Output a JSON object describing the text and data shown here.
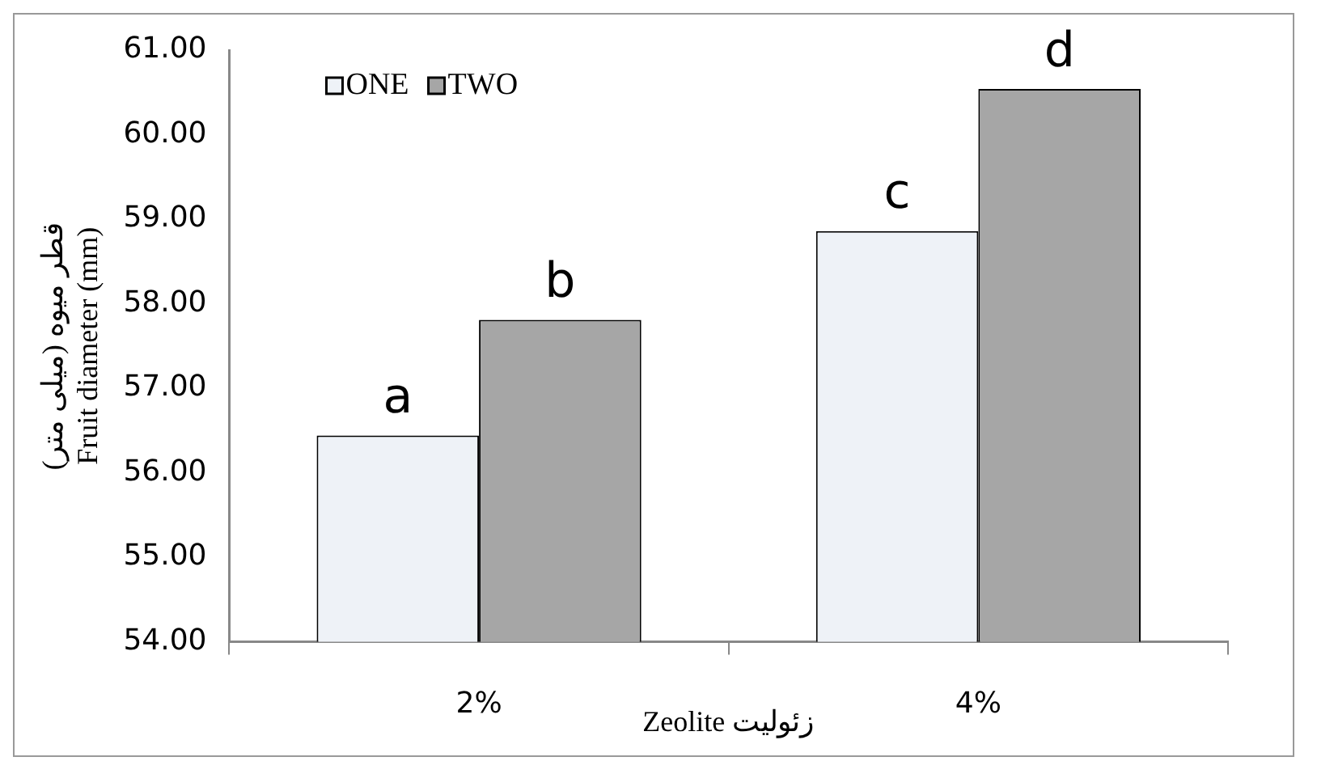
{
  "chart_data": {
    "type": "bar",
    "categories": [
      "2%",
      "4%"
    ],
    "series": [
      {
        "name": "ONE",
        "color": "#eef2f7",
        "values": [
          56.44,
          58.86
        ]
      },
      {
        "name": "TWO",
        "color": "#a6a6a6",
        "values": [
          57.81,
          60.54
        ]
      }
    ],
    "ylabel": "قطر میوه (میلی متر)\nFruit diameter (mm)",
    "xlabel": "Zeolite زئولیت",
    "ylim": [
      54,
      61
    ],
    "yticks": [
      {
        "value": 54,
        "label": "54.00"
      },
      {
        "value": 55,
        "label": "55.00"
      },
      {
        "value": 56,
        "label": "56.00"
      },
      {
        "value": 57,
        "label": "57.00"
      },
      {
        "value": 58,
        "label": "58.00"
      },
      {
        "value": 59,
        "label": "59.00"
      },
      {
        "value": 60,
        "label": "60.00"
      },
      {
        "value": 61,
        "label": "61.00"
      }
    ],
    "grid": false,
    "legend": "top left",
    "annotations": [
      {
        "text": "a",
        "x": "2%",
        "y": 56.44
      },
      {
        "text": "b",
        "x": "2%",
        "y": 57.81
      },
      {
        "text": "c",
        "x": "4%",
        "y": 58.86
      },
      {
        "text": "d",
        "x": "4%",
        "y": 60.54
      }
    ]
  }
}
